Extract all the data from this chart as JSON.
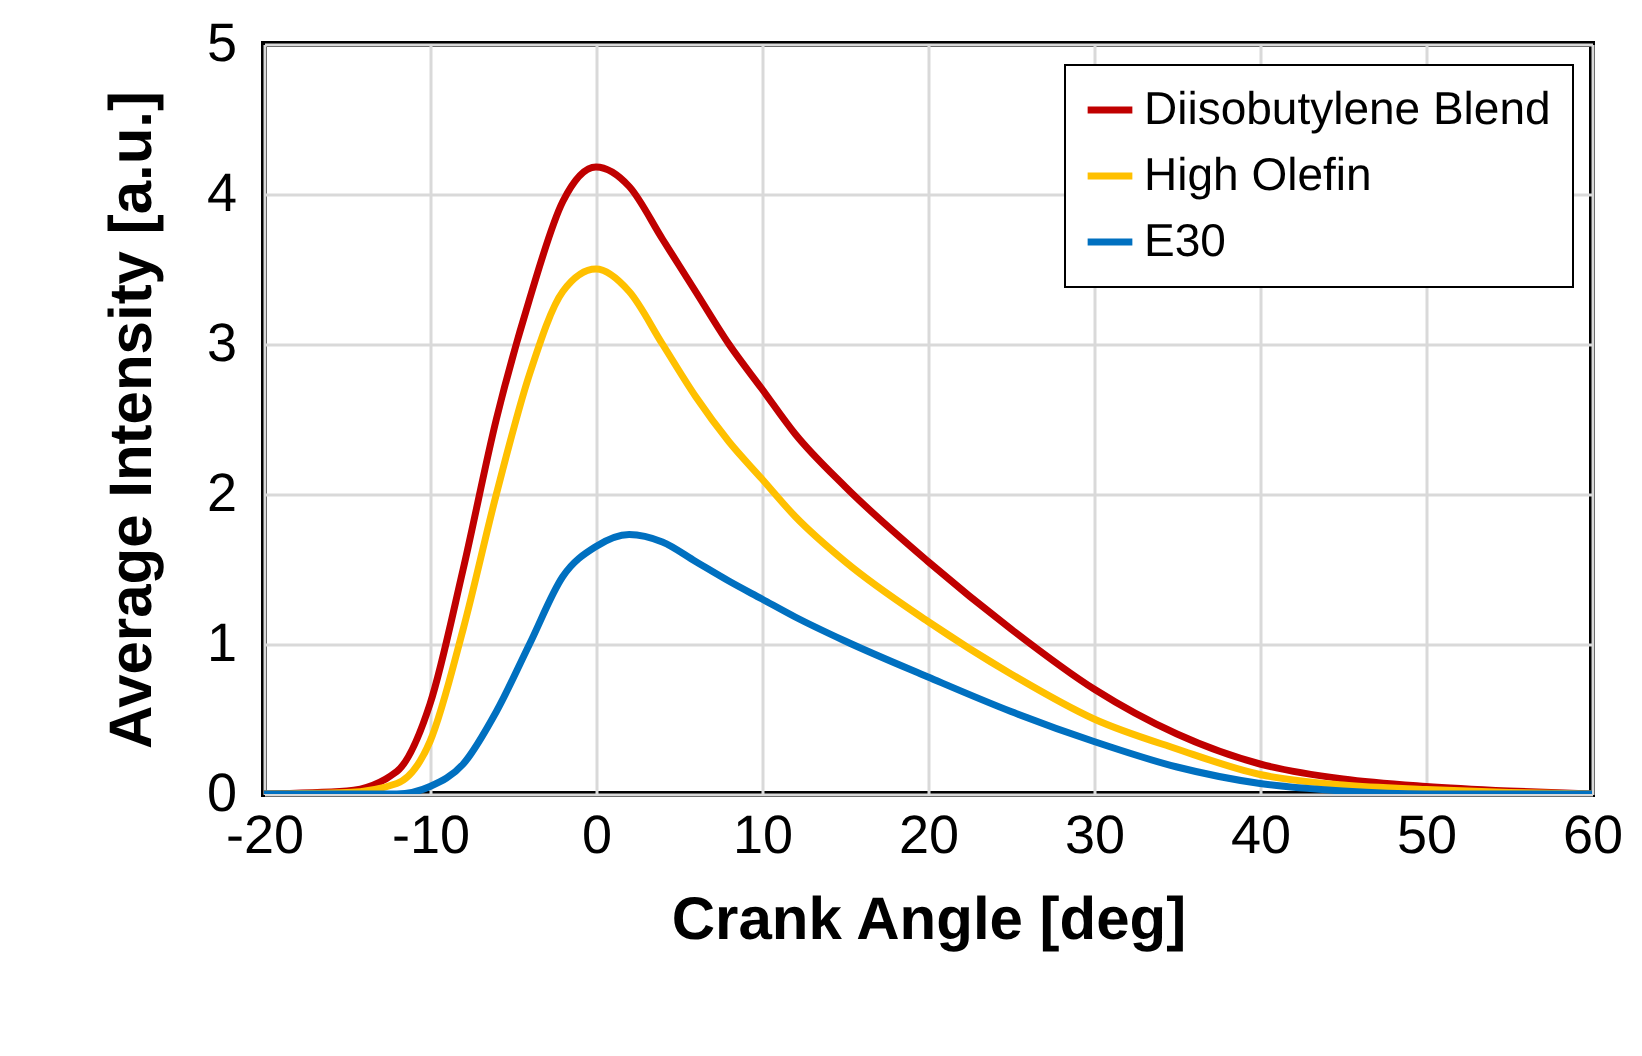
{
  "chart_data": {
    "type": "line",
    "xlabel": "Crank Angle [deg]",
    "ylabel": "Average Intensity [a.u.]",
    "x": [
      -20,
      -15,
      -12,
      -10,
      -8,
      -6,
      -4,
      -2,
      0,
      2,
      4,
      6,
      8,
      10,
      12,
      15,
      20,
      25,
      30,
      35,
      40,
      45,
      50,
      55,
      60
    ],
    "series": [
      {
        "name": "Diisobutylene Blend",
        "color": "#c00000",
        "values": [
          0,
          0.02,
          0.15,
          0.6,
          1.5,
          2.5,
          3.3,
          3.95,
          4.18,
          4.05,
          3.7,
          3.35,
          3.0,
          2.7,
          2.4,
          2.05,
          1.55,
          1.1,
          0.7,
          0.4,
          0.2,
          0.1,
          0.05,
          0.02,
          0
        ]
      },
      {
        "name": "High Olefin",
        "color": "#ffc000",
        "values": [
          0,
          0.01,
          0.07,
          0.35,
          1.1,
          2.0,
          2.8,
          3.35,
          3.5,
          3.35,
          3.0,
          2.65,
          2.35,
          2.1,
          1.85,
          1.55,
          1.15,
          0.8,
          0.5,
          0.3,
          0.13,
          0.06,
          0.03,
          0.01,
          0
        ]
      },
      {
        "name": "E30",
        "color": "#0070c0",
        "values": [
          0,
          0,
          0,
          0.05,
          0.2,
          0.55,
          1.0,
          1.45,
          1.65,
          1.73,
          1.68,
          1.55,
          1.42,
          1.3,
          1.18,
          1.02,
          0.78,
          0.55,
          0.35,
          0.18,
          0.07,
          0.02,
          0,
          0,
          0
        ]
      }
    ],
    "xlim": [
      -20,
      60
    ],
    "ylim": [
      0,
      5
    ],
    "xticks": [
      -20,
      -10,
      0,
      10,
      20,
      30,
      40,
      50,
      60
    ],
    "yticks": [
      0,
      1,
      2,
      3,
      4,
      5
    ],
    "grid": true,
    "legend": "top right"
  }
}
